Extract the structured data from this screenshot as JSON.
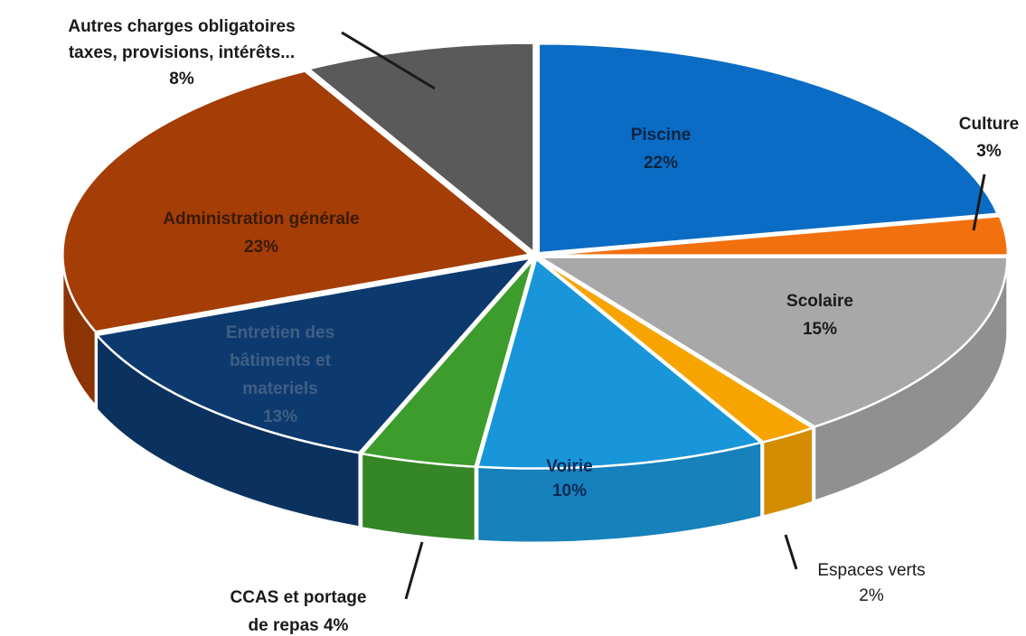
{
  "chart_data": {
    "type": "pie",
    "style": "3d-exploded",
    "slices": [
      {
        "name": "Piscine",
        "value": 22,
        "label_lines": [
          "Piscine",
          "22%"
        ],
        "color": "#0a6cc4"
      },
      {
        "name": "Culture",
        "value": 3,
        "label_lines": [
          "Culture",
          "3%"
        ],
        "color": "#f3700f"
      },
      {
        "name": "Scolaire",
        "value": 15,
        "label_lines": [
          "Scolaire",
          "15%"
        ],
        "color": "#a8a8a8"
      },
      {
        "name": "Espaces verts",
        "value": 2,
        "label_lines": [
          "Espaces verts",
          "2%"
        ],
        "color": "#f7a400"
      },
      {
        "name": "Voirie",
        "value": 10,
        "label_lines": [
          "Voirie",
          "10%"
        ],
        "color": "#1996da"
      },
      {
        "name": "CCAS et portage de repas",
        "value": 4,
        "label_lines": [
          "CCAS et portage",
          "de repas 4%"
        ],
        "color": "#3c9c2c"
      },
      {
        "name": "Entretien des bâtiments et materiels",
        "value": 13,
        "label_lines": [
          "Entretien des",
          "bâtiments et",
          "materiels",
          "13%"
        ],
        "color": "#0d3a6e"
      },
      {
        "name": "Administration générale",
        "value": 23,
        "label_lines": [
          "Administration générale",
          "23%"
        ],
        "color": "#a43d06"
      },
      {
        "name": "Autres charges obligatoires taxes, provisions, intérêts...",
        "value": 8,
        "label_lines": [
          "Autres charges obligatoires",
          "taxes, provisions, intérêts...",
          "8%"
        ],
        "color": "#5a5a5a"
      }
    ]
  }
}
